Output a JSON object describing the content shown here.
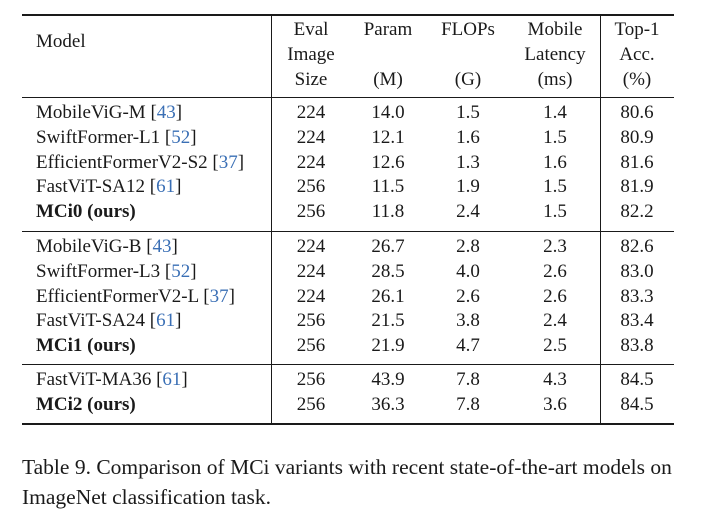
{
  "table": {
    "headers": {
      "model": "Model",
      "eval": [
        "Eval",
        "Image",
        "Size"
      ],
      "param": [
        "Param",
        "(M)"
      ],
      "flops": [
        "FLOPs",
        "(G)"
      ],
      "latency": [
        "Mobile",
        "Latency",
        "(ms)"
      ],
      "top1": [
        "Top-1",
        "Acc.",
        "(%)"
      ]
    },
    "groups": [
      [
        {
          "name": "MobileViG-M",
          "ref": "43",
          "bold": false,
          "size": "224",
          "param": "14.0",
          "flops": "1.5",
          "latency": "1.4",
          "top1": "80.6"
        },
        {
          "name": "SwiftFormer-L1",
          "ref": "52",
          "bold": false,
          "size": "224",
          "param": "12.1",
          "flops": "1.6",
          "latency": "1.5",
          "top1": "80.9"
        },
        {
          "name": "EfficientFormerV2-S2",
          "ref": "37",
          "bold": false,
          "size": "224",
          "param": "12.6",
          "flops": "1.3",
          "latency": "1.6",
          "top1": "81.6"
        },
        {
          "name": "FastViT-SA12",
          "ref": "61",
          "bold": false,
          "size": "256",
          "param": "11.5",
          "flops": "1.9",
          "latency": "1.5",
          "top1": "81.9"
        },
        {
          "name": "MCi0 (ours)",
          "ref": "",
          "bold": true,
          "size": "256",
          "param": "11.8",
          "flops": "2.4",
          "latency": "1.5",
          "top1": "82.2"
        }
      ],
      [
        {
          "name": "MobileViG-B",
          "ref": "43",
          "bold": false,
          "size": "224",
          "param": "26.7",
          "flops": "2.8",
          "latency": "2.3",
          "top1": "82.6"
        },
        {
          "name": "SwiftFormer-L3",
          "ref": "52",
          "bold": false,
          "size": "224",
          "param": "28.5",
          "flops": "4.0",
          "latency": "2.6",
          "top1": "83.0"
        },
        {
          "name": "EfficientFormerV2-L",
          "ref": "37",
          "bold": false,
          "size": "224",
          "param": "26.1",
          "flops": "2.6",
          "latency": "2.6",
          "top1": "83.3"
        },
        {
          "name": "FastViT-SA24",
          "ref": "61",
          "bold": false,
          "size": "256",
          "param": "21.5",
          "flops": "3.8",
          "latency": "2.4",
          "top1": "83.4"
        },
        {
          "name": "MCi1 (ours)",
          "ref": "",
          "bold": true,
          "size": "256",
          "param": "21.9",
          "flops": "4.7",
          "latency": "2.5",
          "top1": "83.8"
        }
      ],
      [
        {
          "name": "FastViT-MA36",
          "ref": "61",
          "bold": false,
          "size": "256",
          "param": "43.9",
          "flops": "7.8",
          "latency": "4.3",
          "top1": "84.5"
        },
        {
          "name": "MCi2 (ours)",
          "ref": "",
          "bold": true,
          "size": "256",
          "param": "36.3",
          "flops": "7.8",
          "latency": "3.6",
          "top1": "84.5"
        }
      ]
    ]
  },
  "caption": "Table 9. Comparison of MCi variants with recent state-of-the-art models on ImageNet classification task."
}
